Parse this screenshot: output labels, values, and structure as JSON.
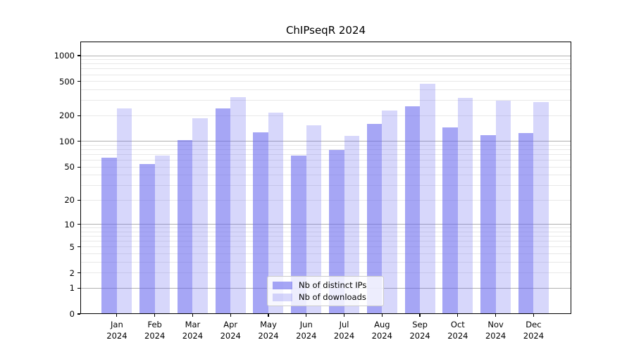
{
  "title": "ChIPseqR 2024",
  "chart_data": {
    "type": "bar",
    "title": "ChIPseqR 2024",
    "scale": "log10(value+1)",
    "categories": [
      "Jan 2024",
      "Feb 2024",
      "Mar 2024",
      "Apr 2024",
      "May 2024",
      "Jun 2024",
      "Jul 2024",
      "Aug 2024",
      "Sep 2024",
      "Oct 2024",
      "Nov 2024",
      "Dec 2024"
    ],
    "series": [
      {
        "name": "Nb of distinct IPs",
        "color": "rgba(102,102,238,0.58)",
        "values": [
          64,
          54,
          103,
          242,
          127,
          68,
          79,
          160,
          258,
          145,
          118,
          125
        ]
      },
      {
        "name": "Nb of downloads",
        "color": "rgba(102,102,238,0.26)",
        "values": [
          243,
          68,
          185,
          330,
          215,
          155,
          117,
          230,
          475,
          320,
          300,
          290
        ]
      }
    ],
    "y_ticks": [
      0,
      1,
      2,
      5,
      10,
      20,
      50,
      100,
      200,
      500,
      1000
    ],
    "y_major_gridlines": [
      1,
      10,
      100,
      1000
    ],
    "ylim": [
      0,
      1460
    ],
    "xlabel": "",
    "ylabel": "",
    "grid": "horizontal",
    "legend_position": "inside bottom-center"
  },
  "colors": {
    "bar_base": "#6666ee",
    "major_grid": "#b0b0b0",
    "minor_grid": "#e8e8e8",
    "spine": "#000000",
    "legend_border": "#cccccc",
    "background": "#ffffff"
  }
}
